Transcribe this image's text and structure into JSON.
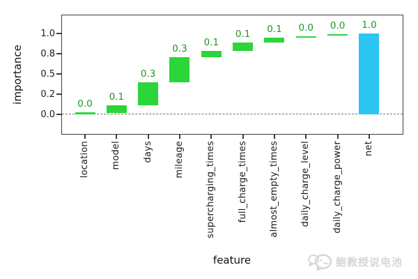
{
  "chart_data": {
    "type": "bar",
    "subtype": "waterfall",
    "title": "",
    "xlabel": "feature",
    "ylabel": "importance",
    "categories": [
      "location",
      "model",
      "days",
      "mileage",
      "supercharging_times",
      "full_charge_times",
      "almost_empty_times",
      "daily_charge_level",
      "daily_charge_power",
      "net"
    ],
    "values": [
      0.0,
      0.1,
      0.3,
      0.3,
      0.1,
      0.1,
      0.1,
      0.0,
      0.0,
      1.0
    ],
    "bar_labels": [
      "0.0",
      "0.1",
      "0.3",
      "0.3",
      "0.1",
      "0.1",
      "0.1",
      "0.0",
      "0.0",
      "1.0"
    ],
    "bars": [
      {
        "category": "location",
        "label": "0.0",
        "start": 0.0,
        "end": 0.025,
        "role": "step"
      },
      {
        "category": "model",
        "label": "0.1",
        "start": 0.015,
        "end": 0.115,
        "role": "step"
      },
      {
        "category": "days",
        "label": "0.3",
        "start": 0.115,
        "end": 0.4,
        "role": "step"
      },
      {
        "category": "mileage",
        "label": "0.3",
        "start": 0.4,
        "end": 0.71,
        "role": "step"
      },
      {
        "category": "supercharging_times",
        "label": "0.1",
        "start": 0.71,
        "end": 0.785,
        "role": "step"
      },
      {
        "category": "full_charge_times",
        "label": "0.1",
        "start": 0.785,
        "end": 0.885,
        "role": "step"
      },
      {
        "category": "almost_empty_times",
        "label": "0.1",
        "start": 0.885,
        "end": 0.945,
        "role": "step"
      },
      {
        "category": "daily_charge_level",
        "label": "0.0",
        "start": 0.948,
        "end": 0.968,
        "role": "step"
      },
      {
        "category": "daily_charge_power",
        "label": "0.0",
        "start": 0.972,
        "end": 0.995,
        "role": "step"
      },
      {
        "category": "net",
        "label": "1.0",
        "start": 0.0,
        "end": 1.0,
        "role": "net"
      }
    ],
    "yticks": [
      {
        "label": "1.0",
        "value": 1.0
      },
      {
        "label": "0.8",
        "value": 0.75
      },
      {
        "label": "0.5",
        "value": 0.5
      },
      {
        "label": "0.2",
        "value": 0.25
      },
      {
        "label": "0.0",
        "value": 0.0
      }
    ],
    "ylim": [
      -0.25,
      1.233
    ],
    "grid": false,
    "legend": false,
    "zero_line": true,
    "colors": {
      "step_bar": "#2bd53a",
      "net_bar": "#2cc5f4",
      "bar_label": "#1f9522",
      "axis": "#3b3b3b",
      "zero_line": "#6e6e6e",
      "tick_text": "#1a1a1a"
    }
  },
  "watermark": {
    "text": "鲍教授说电池",
    "icon": "chat-bubbles-icon",
    "color": "#d6d6d6"
  }
}
